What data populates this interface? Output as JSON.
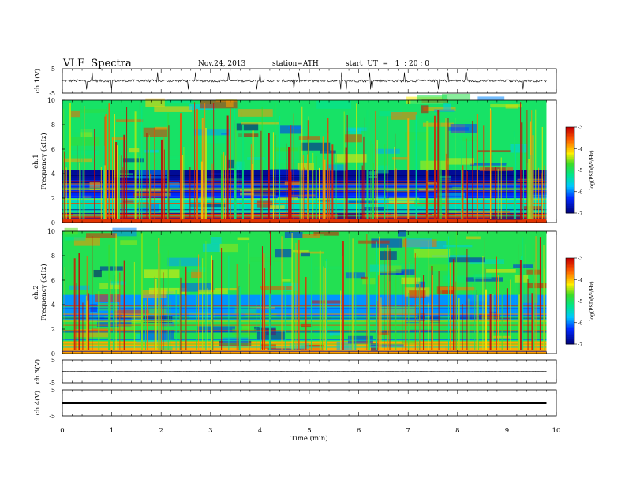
{
  "header": {
    "title": "VLF  Spectra",
    "date": "Nov.24, 2013",
    "station": "station=ATH",
    "start": "start  UT  =   1  : 20 : 0"
  },
  "chart_data": {
    "type": "heatmap",
    "title": "VLF  Spectra",
    "xlabel": "Time  (min)",
    "x_ticks": [
      "0",
      "1",
      "2",
      "3",
      "4",
      "5",
      "6",
      "7",
      "8",
      "9",
      "10"
    ],
    "xlim": [
      0,
      10
    ],
    "data_end_min": 9.8,
    "panels": [
      {
        "name": "ch1-waveform",
        "type": "line",
        "ylabel": "ch.1(V)",
        "y_ticks": [
          "5",
          "-5"
        ],
        "ylim": [
          -5,
          5
        ],
        "trace": {
          "mean_v": 0.0,
          "noise_amplitude_v": 1.0,
          "spike_amplitude_v": 3.5
        }
      },
      {
        "name": "ch1-spectrogram",
        "type": "heatmap",
        "ylabel": [
          "ch.1",
          "Frequency  (kHz)"
        ],
        "y_ticks": [
          "0",
          "2",
          "4",
          "6",
          "8",
          "10"
        ],
        "ylim": [
          0,
          10
        ],
        "colorbar": {
          "label": "log(PSD(V²/Hz)",
          "ticks": [
            "-3",
            "-4",
            "-5",
            "-6",
            "-7"
          ],
          "range": [
            -7,
            -3
          ]
        },
        "bands": [
          {
            "f_lo_khz": 0.0,
            "f_hi_khz": 0.8,
            "log_psd": -3.3
          },
          {
            "f_lo_khz": 0.8,
            "f_hi_khz": 2.0,
            "log_psd": -5.4
          },
          {
            "f_lo_khz": 2.0,
            "f_hi_khz": 3.2,
            "log_psd": -6.3
          },
          {
            "f_lo_khz": 3.2,
            "f_hi_khz": 4.3,
            "log_psd": -6.8
          },
          {
            "f_lo_khz": 4.3,
            "f_hi_khz": 10.0,
            "log_psd": -5.0
          }
        ]
      },
      {
        "name": "ch2-spectrogram",
        "type": "heatmap",
        "ylabel": [
          "ch.2",
          "Frequency  (kHz)"
        ],
        "y_ticks": [
          "0",
          "2",
          "4",
          "6",
          "8",
          "10"
        ],
        "ylim": [
          0,
          10
        ],
        "colorbar": {
          "label": "log(PSD(V²/Hz)",
          "ticks": [
            "-3",
            "-4",
            "-5",
            "-6",
            "-7"
          ],
          "range": [
            -7,
            -3
          ]
        },
        "bands": [
          {
            "f_lo_khz": 0.0,
            "f_hi_khz": 1.0,
            "log_psd": -3.9
          },
          {
            "f_lo_khz": 1.0,
            "f_hi_khz": 3.0,
            "log_psd": -4.9
          },
          {
            "f_lo_khz": 3.0,
            "f_hi_khz": 4.8,
            "log_psd": -5.9
          },
          {
            "f_lo_khz": 4.8,
            "f_hi_khz": 10.0,
            "log_psd": -4.9
          }
        ]
      },
      {
        "name": "ch3-waveform",
        "type": "line",
        "ylabel": "ch.3(V)",
        "y_ticks": [
          "5",
          "-5"
        ],
        "ylim": [
          -5,
          5
        ],
        "trace": {
          "mean_v": 0.0,
          "noise_amplitude_v": 0.15,
          "spike_amplitude_v": 0.0
        }
      },
      {
        "name": "ch4-waveform",
        "type": "line",
        "ylabel": "ch.4(V)",
        "y_ticks": [
          "5",
          "-5"
        ],
        "ylim": [
          -5,
          5
        ],
        "trace": {
          "mean_v": 0.0,
          "noise_amplitude_v": 0.0,
          "spike_amplitude_v": 0.0,
          "thick": true
        }
      }
    ]
  }
}
